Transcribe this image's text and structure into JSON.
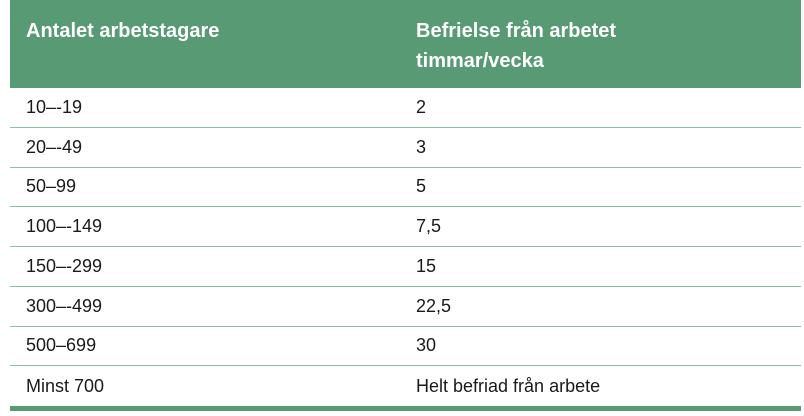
{
  "table": {
    "headers": {
      "col1": "Antalet arbetstagare",
      "col2_line1": "Befrielse från arbetet",
      "col2_line2": "timmar/vecka"
    },
    "rows": [
      {
        "employees": "10–-19",
        "hours": "2"
      },
      {
        "employees": "20–-49",
        "hours": "3"
      },
      {
        "employees": "50–99",
        "hours": "5"
      },
      {
        "employees": "100–-149",
        "hours": "7,5"
      },
      {
        "employees": "150–-299",
        "hours": "15"
      },
      {
        "employees": "300–-499",
        "hours": "22,5"
      },
      {
        "employees": "500–699",
        "hours": "30"
      },
      {
        "employees": "Minst 700",
        "hours": "Helt befriad från arbete"
      }
    ]
  },
  "colors": {
    "header_bg": "#579a74",
    "row_divider": "#8cbf9f"
  }
}
